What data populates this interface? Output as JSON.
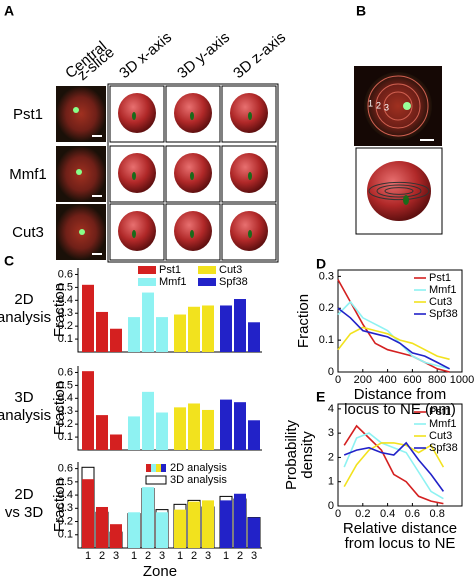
{
  "panel_labels": [
    "A",
    "B",
    "C",
    "D",
    "E"
  ],
  "panel_a": {
    "column_headers": [
      [
        "Central",
        "z-slice"
      ],
      [
        "3D x-axis"
      ],
      [
        "3D y-axis"
      ],
      [
        "3D z-axis"
      ]
    ],
    "rows": [
      "Pst1",
      "Mmf1",
      "Cut3"
    ]
  },
  "panel_b": {
    "zone_labels": [
      "1",
      "2",
      "3"
    ]
  },
  "chart_data": [
    {
      "type": "bar",
      "title": [
        "2D",
        "analysis"
      ],
      "ylabel": "Fraction",
      "ylim": [
        0,
        0.65
      ],
      "yticks": [
        0.1,
        0.2,
        0.3,
        0.4,
        0.5,
        0.6
      ],
      "legend": "top-right",
      "series": [
        {
          "name": "Pst1",
          "color": "#d42020",
          "values": [
            0.52,
            0.31,
            0.18
          ]
        },
        {
          "name": "Mmf1",
          "color": "#8ef2f2",
          "values": [
            0.27,
            0.46,
            0.27
          ]
        },
        {
          "name": "Cut3",
          "color": "#f2e21e",
          "values": [
            0.29,
            0.35,
            0.36
          ]
        },
        {
          "name": "Spf38",
          "color": "#2222c8",
          "values": [
            0.36,
            0.41,
            0.23
          ]
        }
      ]
    },
    {
      "type": "bar",
      "title": [
        "3D",
        "analysis"
      ],
      "ylabel": "Fraction",
      "ylim": [
        0,
        0.65
      ],
      "yticks": [
        0.1,
        0.2,
        0.3,
        0.4,
        0.5,
        0.6
      ],
      "series": [
        {
          "name": "Pst1",
          "color": "#d42020",
          "values": [
            0.61,
            0.27,
            0.12
          ]
        },
        {
          "name": "Mmf1",
          "color": "#8ef2f2",
          "values": [
            0.26,
            0.45,
            0.29
          ]
        },
        {
          "name": "Cut3",
          "color": "#f2e21e",
          "values": [
            0.33,
            0.36,
            0.31
          ]
        },
        {
          "name": "Spf38",
          "color": "#2222c8",
          "values": [
            0.39,
            0.37,
            0.23
          ]
        }
      ]
    },
    {
      "type": "overlay_bar",
      "title": [
        "2D",
        "vs 3D"
      ],
      "ylabel": "Fraction",
      "xlabel": "Zone",
      "ylim": [
        0,
        0.65
      ],
      "yticks": [
        0.1,
        0.2,
        0.3,
        0.4,
        0.5,
        0.6
      ],
      "legend": "top-right",
      "categories": [
        "1",
        "2",
        "3",
        "1",
        "2",
        "3",
        "1",
        "2",
        "3",
        "1",
        "2",
        "3"
      ],
      "series": [
        {
          "name": "2D analysis",
          "colors": [
            "#d42020",
            "#8ef2f2",
            "#f2e21e",
            "#2222c8"
          ],
          "values": [
            0.52,
            0.31,
            0.18,
            0.27,
            0.46,
            0.27,
            0.29,
            0.35,
            0.36,
            0.36,
            0.41,
            0.23
          ]
        },
        {
          "name": "3D analysis",
          "color": "#ffffff",
          "values": [
            0.61,
            0.27,
            0.12,
            0.26,
            0.45,
            0.29,
            0.33,
            0.36,
            0.31,
            0.39,
            0.37,
            0.23
          ]
        }
      ]
    },
    {
      "type": "line",
      "ylabel": [
        "Fraction"
      ],
      "xlabel": [
        "Distance from",
        "locus to NE (nm)"
      ],
      "xlim": [
        0,
        1000
      ],
      "ylim": [
        0,
        0.32
      ],
      "xticks": [
        0,
        200,
        400,
        600,
        800,
        1000
      ],
      "yticks": [
        0,
        0.1,
        0.2,
        0.3
      ],
      "legend": "top-right",
      "x": [
        0,
        100,
        200,
        300,
        400,
        500,
        600,
        700,
        800,
        900
      ],
      "series": [
        {
          "name": "Pst1",
          "color": "#d42020",
          "values": [
            0.29,
            0.22,
            0.15,
            0.09,
            0.07,
            0.06,
            0.05,
            0.03,
            0.01,
            0.0
          ]
        },
        {
          "name": "Mmf1",
          "color": "#8ef2f2",
          "values": [
            0.18,
            0.22,
            0.17,
            0.15,
            0.13,
            0.09,
            0.05,
            0.03,
            0.02,
            0.01
          ]
        },
        {
          "name": "Cut3",
          "color": "#f2e21e",
          "values": [
            0.07,
            0.12,
            0.14,
            0.13,
            0.12,
            0.1,
            0.09,
            0.07,
            0.05,
            0.04
          ]
        },
        {
          "name": "Spf38",
          "color": "#2222c8",
          "values": [
            0.2,
            0.17,
            0.13,
            0.12,
            0.11,
            0.09,
            0.06,
            0.05,
            0.03,
            0.01
          ]
        }
      ]
    },
    {
      "type": "line",
      "ylabel": [
        "Probability",
        "density"
      ],
      "xlabel": [
        "Relative distance",
        "from locus to NE"
      ],
      "xlim": [
        0,
        1
      ],
      "ylim": [
        0,
        4.2
      ],
      "xticks": [
        0,
        0.2,
        0.4,
        0.6,
        0.8
      ],
      "yticks": [
        0,
        1,
        2,
        3,
        4
      ],
      "legend": "top-right",
      "x": [
        0.05,
        0.15,
        0.25,
        0.35,
        0.45,
        0.55,
        0.65,
        0.75,
        0.85
      ],
      "series": [
        {
          "name": "Pst1",
          "color": "#d42020",
          "values": [
            2.5,
            3.3,
            2.8,
            2.3,
            1.3,
            1.0,
            0.4,
            0.2,
            0.1
          ]
        },
        {
          "name": "Mmf1",
          "color": "#8ef2f2",
          "values": [
            1.6,
            2.8,
            3.0,
            2.6,
            2.4,
            2.2,
            1.4,
            0.6,
            0.3
          ]
        },
        {
          "name": "Cut3",
          "color": "#f2e21e",
          "values": [
            0.8,
            1.7,
            2.3,
            2.6,
            2.6,
            2.5,
            2.2,
            2.5,
            1.6
          ]
        },
        {
          "name": "Spf38",
          "color": "#2222c8",
          "values": [
            2.1,
            2.3,
            2.4,
            2.2,
            2.1,
            2.6,
            1.9,
            1.3,
            0.6
          ]
        }
      ]
    }
  ]
}
